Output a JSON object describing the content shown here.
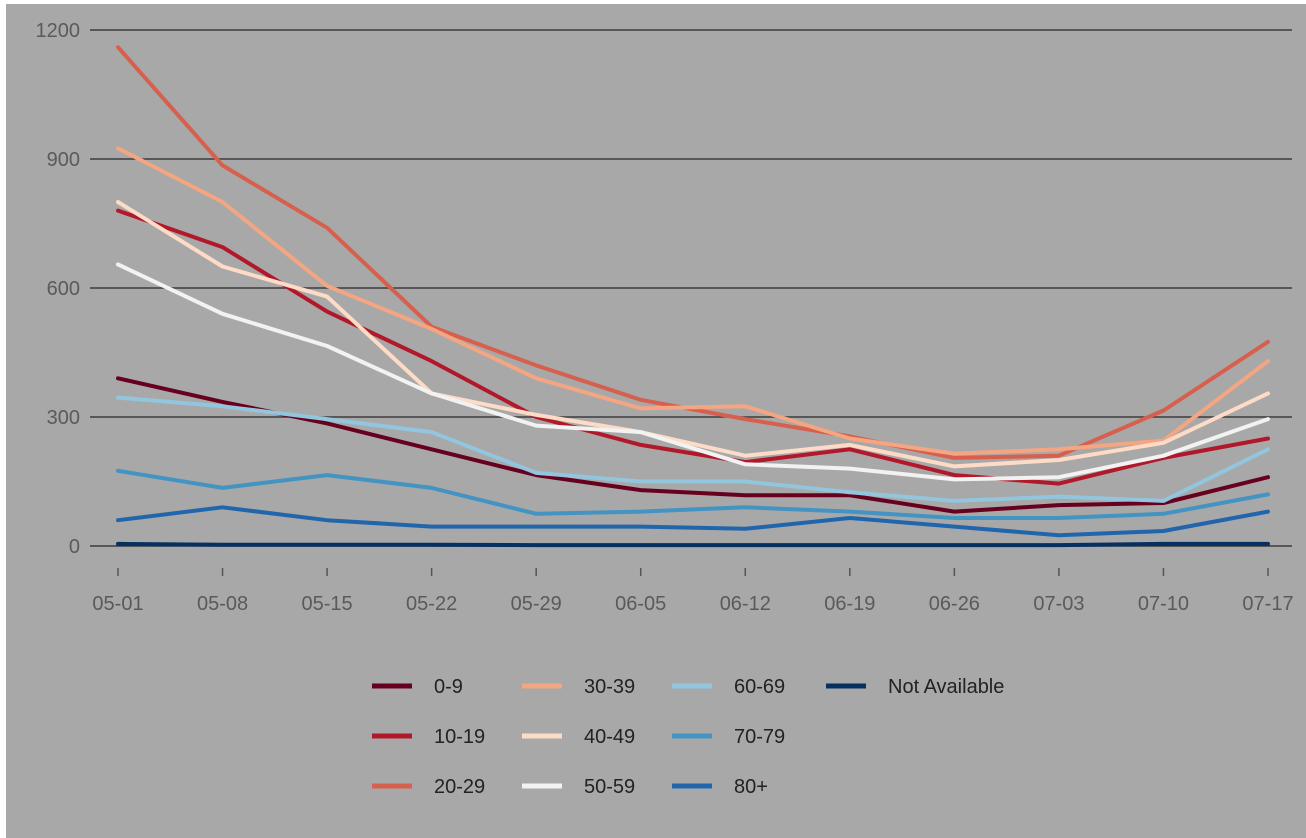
{
  "chart_data": {
    "type": "line",
    "x": [
      "05-01",
      "05-08",
      "05-15",
      "05-22",
      "05-29",
      "06-05",
      "06-12",
      "06-19",
      "06-26",
      "07-03",
      "07-10",
      "07-17"
    ],
    "y_ticks": [
      "0",
      "300",
      "600",
      "900",
      "1200"
    ],
    "ylim": [
      0,
      1200
    ],
    "grid": true,
    "legend_position": "bottom",
    "series": [
      {
        "name": "0-9",
        "color": "#67001f",
        "values": [
          390,
          335,
          285,
          225,
          165,
          130,
          118,
          118,
          80,
          95,
          100,
          160
        ]
      },
      {
        "name": "10-19",
        "color": "#b2182b",
        "values": [
          780,
          695,
          545,
          430,
          300,
          235,
          195,
          225,
          165,
          145,
          205,
          250
        ]
      },
      {
        "name": "20-29",
        "color": "#d6604d",
        "values": [
          1160,
          885,
          740,
          510,
          420,
          340,
          295,
          255,
          205,
          210,
          315,
          475
        ]
      },
      {
        "name": "30-39",
        "color": "#f4a582",
        "values": [
          925,
          800,
          605,
          505,
          390,
          320,
          325,
          250,
          215,
          225,
          245,
          430
        ]
      },
      {
        "name": "40-49",
        "color": "#fddbc7",
        "values": [
          800,
          650,
          580,
          355,
          305,
          265,
          210,
          235,
          185,
          200,
          240,
          355
        ]
      },
      {
        "name": "50-59",
        "color": "#f2f2f2",
        "values": [
          655,
          540,
          465,
          355,
          280,
          265,
          190,
          180,
          155,
          160,
          210,
          295
        ]
      },
      {
        "name": "60-69",
        "color": "#92c5de",
        "values": [
          345,
          325,
          295,
          265,
          170,
          150,
          150,
          125,
          105,
          115,
          105,
          225
        ]
      },
      {
        "name": "70-79",
        "color": "#4393c3",
        "values": [
          175,
          135,
          165,
          135,
          75,
          80,
          90,
          80,
          65,
          65,
          75,
          120
        ]
      },
      {
        "name": "80+",
        "color": "#2166ac",
        "values": [
          60,
          90,
          60,
          45,
          45,
          45,
          40,
          65,
          45,
          25,
          35,
          80
        ]
      },
      {
        "name": "Not Available",
        "color": "#053061",
        "values": [
          5,
          3,
          3,
          3,
          2,
          2,
          2,
          2,
          2,
          2,
          5,
          5
        ]
      }
    ]
  }
}
